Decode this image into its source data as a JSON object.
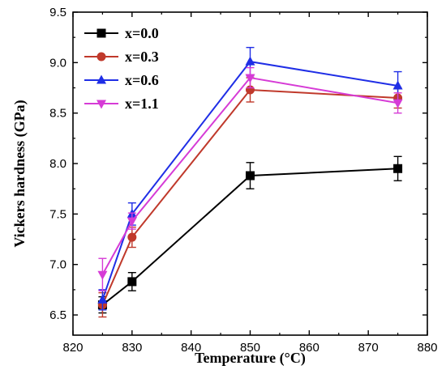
{
  "chart_data": {
    "type": "line",
    "xlabel": "Temperature (°C)",
    "ylabel": "Vickers hardness (GPa)",
    "xlim": [
      820,
      880
    ],
    "ylim": [
      6.3,
      9.5
    ],
    "xticks": [
      820,
      830,
      840,
      850,
      860,
      870,
      880
    ],
    "yticks": [
      6.5,
      7.0,
      7.5,
      8.0,
      8.5,
      9.0,
      9.5
    ],
    "xtick_labels": [
      "820",
      "830",
      "840",
      "850",
      "860",
      "870",
      "880"
    ],
    "ytick_labels": [
      "6.5",
      "7.0",
      "7.5",
      "8.0",
      "8.5",
      "9.0",
      "9.5"
    ],
    "grid": false,
    "legend_position": "top-left",
    "x": [
      825,
      830,
      850,
      875
    ],
    "series": [
      {
        "name": "x=0.0",
        "color": "#000000",
        "marker": "square",
        "values": [
          6.6,
          6.83,
          7.88,
          7.95
        ],
        "errors": [
          0.08,
          0.09,
          0.13,
          0.12
        ]
      },
      {
        "name": "x=0.3",
        "color": "#c0392b",
        "marker": "circle",
        "values": [
          6.6,
          7.27,
          8.73,
          8.65
        ],
        "errors": [
          0.12,
          0.1,
          0.12,
          0.1
        ]
      },
      {
        "name": "x=0.6",
        "color": "#1f2ee6",
        "marker": "triangle-up",
        "values": [
          6.65,
          7.5,
          9.01,
          8.77
        ],
        "errors": [
          0.1,
          0.11,
          0.14,
          0.14
        ]
      },
      {
        "name": "x=1.1",
        "color": "#d63bd6",
        "marker": "triangle-down",
        "values": [
          6.9,
          7.43,
          8.85,
          8.6
        ],
        "errors": [
          0.16,
          0.08,
          0.1,
          0.1
        ]
      }
    ]
  }
}
